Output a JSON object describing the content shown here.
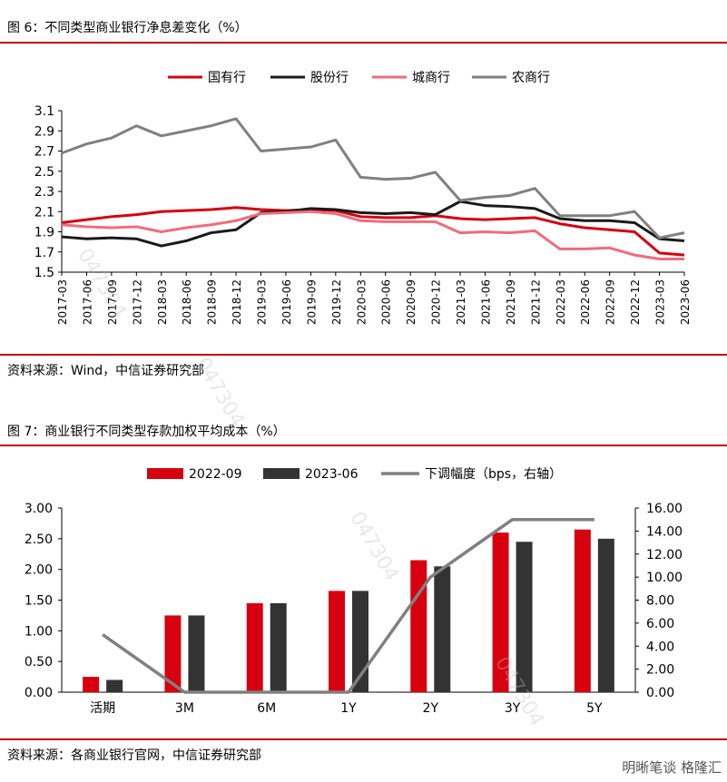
{
  "fig1": {
    "caption": "图 6：不同类型商业银行净息差变化（%）",
    "source": "资料来源：Wind，中信证券研究部"
  },
  "fig2": {
    "caption": "图 7：商业银行不同类型存款加权平均成本（%）",
    "source": "资料来源：各商业银行官网，中信证券研究部"
  },
  "watermark": "047304",
  "brand": "明晰笔谈 格隆汇",
  "colors": {
    "red": "#d7000f",
    "black": "#1a1a1a",
    "pink": "#f26b7a",
    "gray": "#808080",
    "rule": "#c00000",
    "bar_black": "#333333"
  },
  "chart_data": [
    {
      "type": "line",
      "x": [
        "2017-03",
        "2017-06",
        "2017-09",
        "2017-12",
        "2018-03",
        "2018-06",
        "2018-09",
        "2018-12",
        "2019-03",
        "2019-06",
        "2019-09",
        "2019-12",
        "2020-03",
        "2020-06",
        "2020-09",
        "2020-12",
        "2021-03",
        "2021-06",
        "2021-09",
        "2021-12",
        "2022-03",
        "2022-06",
        "2022-09",
        "2022-12",
        "2023-03",
        "2023-06"
      ],
      "ylim": [
        1.5,
        3.1
      ],
      "yticks": [
        1.5,
        1.7,
        1.9,
        2.1,
        2.3,
        2.5,
        2.7,
        2.9,
        3.1
      ],
      "legend_position": "top",
      "series": [
        {
          "name": "国有行",
          "color": "red",
          "values": [
            1.99,
            2.02,
            2.05,
            2.07,
            2.1,
            2.11,
            2.12,
            2.14,
            2.12,
            2.11,
            2.12,
            2.11,
            2.05,
            2.04,
            2.04,
            2.06,
            2.03,
            2.02,
            2.03,
            2.04,
            1.98,
            1.94,
            1.92,
            1.9,
            1.69,
            1.67
          ]
        },
        {
          "name": "股份行",
          "color": "black",
          "values": [
            1.85,
            1.83,
            1.84,
            1.83,
            1.76,
            1.81,
            1.89,
            1.92,
            2.09,
            2.1,
            2.13,
            2.12,
            2.09,
            2.08,
            2.09,
            2.07,
            2.2,
            2.16,
            2.15,
            2.13,
            2.03,
            2.01,
            2.01,
            1.99,
            1.83,
            1.81
          ]
        },
        {
          "name": "城商行",
          "color": "pink",
          "values": [
            1.97,
            1.95,
            1.94,
            1.95,
            1.9,
            1.94,
            1.97,
            2.01,
            2.08,
            2.09,
            2.1,
            2.08,
            2.01,
            2.0,
            2.0,
            2.0,
            1.89,
            1.9,
            1.89,
            1.91,
            1.73,
            1.73,
            1.74,
            1.67,
            1.63,
            1.63
          ]
        },
        {
          "name": "农商行",
          "color": "gray",
          "values": [
            2.68,
            2.77,
            2.83,
            2.95,
            2.85,
            2.9,
            2.95,
            3.02,
            2.7,
            2.72,
            2.74,
            2.81,
            2.44,
            2.42,
            2.43,
            2.49,
            2.21,
            2.24,
            2.26,
            2.33,
            2.06,
            2.06,
            2.06,
            2.1,
            1.84,
            1.89
          ]
        }
      ]
    },
    {
      "type": "bar",
      "categories": [
        "活期",
        "3M",
        "6M",
        "1Y",
        "2Y",
        "3Y",
        "5Y"
      ],
      "ylim": [
        0,
        3.0
      ],
      "yticks": [
        "0.00",
        "0.50",
        "1.00",
        "1.50",
        "2.00",
        "2.50",
        "3.00"
      ],
      "y2lim": [
        0,
        16
      ],
      "y2ticks": [
        "0.00",
        "2.00",
        "4.00",
        "6.00",
        "8.00",
        "10.00",
        "12.00",
        "14.00",
        "16.00"
      ],
      "legend_position": "top",
      "series": [
        {
          "name": "2022-09",
          "kind": "bar",
          "color": "red",
          "values": [
            0.25,
            1.25,
            1.45,
            1.65,
            2.15,
            2.6,
            2.65
          ]
        },
        {
          "name": "2023-06",
          "kind": "bar",
          "color": "bar_black",
          "values": [
            0.2,
            1.25,
            1.45,
            1.65,
            2.05,
            2.45,
            2.5
          ]
        },
        {
          "name": "下调幅度（bps，右轴）",
          "kind": "line",
          "axis": "right",
          "color": "gray",
          "values": [
            5,
            0,
            0,
            0,
            10,
            15,
            15
          ]
        }
      ]
    }
  ]
}
